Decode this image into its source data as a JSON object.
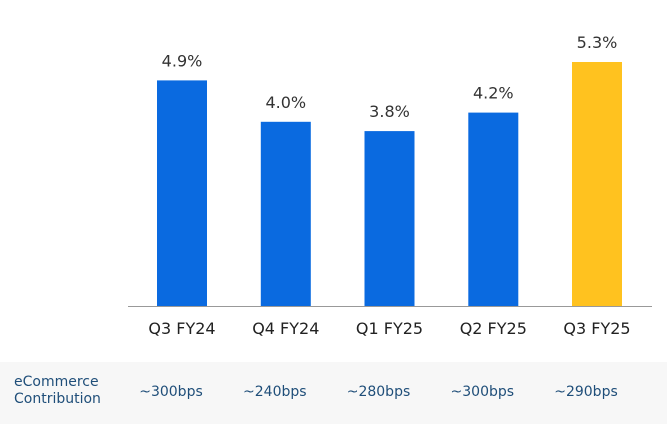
{
  "chart_data": {
    "type": "bar",
    "categories": [
      "Q3 FY24",
      "Q4 FY24",
      "Q1 FY25",
      "Q2 FY25",
      "Q3 FY25"
    ],
    "values": [
      4.9,
      4.0,
      3.8,
      4.2,
      5.3
    ],
    "value_labels": [
      "4.9%",
      "4.0%",
      "3.8%",
      "4.2%",
      "5.3%"
    ],
    "ylim": [
      0,
      5.3
    ],
    "grid": false,
    "colors": {
      "default": "#0a6ae0",
      "highlight": "#ffc21f",
      "axis": "#999999"
    },
    "highlight_index": 4
  },
  "contribution": {
    "title": "eCommerce\nContribution",
    "values": [
      "~300bps",
      "~240bps",
      "~280bps",
      "~300bps",
      "~290bps"
    ]
  }
}
